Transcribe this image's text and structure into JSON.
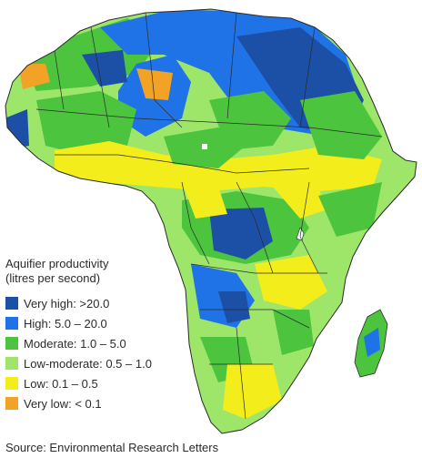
{
  "legend": {
    "title_line1": "Aquifier productivity",
    "title_line2": "(litres per second)",
    "items": [
      {
        "label": "Very high: >20.0",
        "color": "#1c4fa6"
      },
      {
        "label": "High: 5.0 – 20.0",
        "color": "#1f73e6"
      },
      {
        "label": "Moderate: 1.0 – 5.0",
        "color": "#4cc43e"
      },
      {
        "label": "Low-moderate: 0.5 – 1.0",
        "color": "#9de66a"
      },
      {
        "label": "Low: 0.1 – 0.5",
        "color": "#f3ee1b"
      },
      {
        "label": "Very low: < 0.1",
        "color": "#f2a224"
      }
    ]
  },
  "source": "Source: Environmental Research Letters",
  "colors": {
    "ocean": "#ffffff",
    "border": "#2a2a2a",
    "lake": "#ffffff"
  }
}
